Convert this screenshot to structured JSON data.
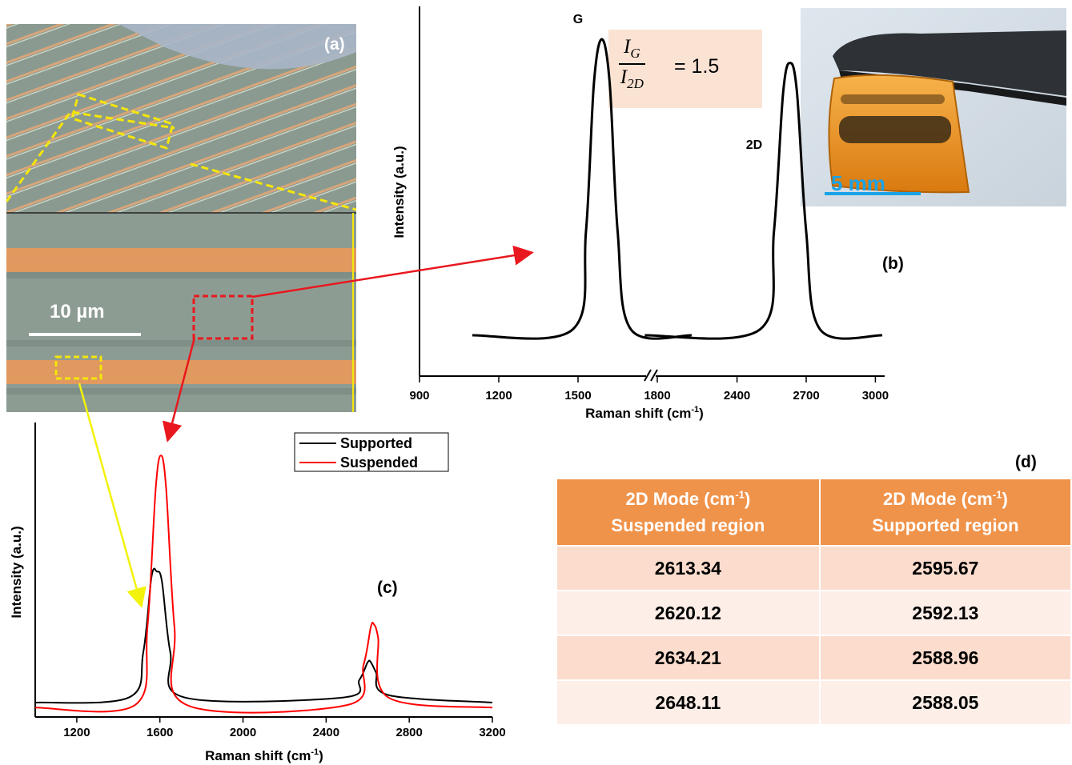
{
  "panel_labels": {
    "a": "(a)",
    "b": "(b)",
    "c": "(c)",
    "d": "(d)"
  },
  "micrograph": {
    "scale_bar": "10 µm"
  },
  "photo": {
    "scale_bar": "5 mm"
  },
  "ratio": {
    "numerator": "I",
    "numerator_sub": "G",
    "denominator": "I",
    "denominator_sub": "2D",
    "value": "= 1.5"
  },
  "colors": {
    "supported": "#000000",
    "suspended": "#ff0000",
    "table_header": "#f0934a",
    "scale_blue": "#1aa3e8",
    "yellow_box": "#f5e60a",
    "arrow_red": "#e8181e",
    "arrow_yellow": "#f2f20a"
  },
  "chart_data": [
    {
      "id": "b",
      "type": "line",
      "xlabel": "Raman shift (cm",
      "xlabel_sup": "-1",
      "xlabel_close": ")",
      "ylabel": "Intensity (a.u.)",
      "x_ticks": [
        "900",
        "1200",
        "1500",
        "1800",
        "2400",
        "2700",
        "3000"
      ],
      "axis_break": true,
      "peak_labels": [
        "G",
        "2D"
      ],
      "series": [
        {
          "segment": "G",
          "x": [
            1100,
            1480,
            1530,
            1560,
            1590,
            1620,
            1650,
            1700,
            1930
          ],
          "y": [
            0.0,
            0.02,
            0.35,
            0.85,
            1.0,
            0.85,
            0.35,
            0.02,
            0.0
          ]
        },
        {
          "segment": "2D",
          "x": [
            2000,
            2500,
            2560,
            2600,
            2630,
            2660,
            2700,
            2760,
            3030
          ],
          "y": [
            0.0,
            0.02,
            0.35,
            0.82,
            0.92,
            0.82,
            0.35,
            0.02,
            0.0
          ]
        }
      ]
    },
    {
      "id": "c",
      "type": "line",
      "xlabel": "Raman shift (cm",
      "xlabel_sup": "-1",
      "xlabel_close": ")",
      "ylabel": "Intensity (a.u.)",
      "xlim": [
        1000,
        3200
      ],
      "x_ticks": [
        "1200",
        "1600",
        "2000",
        "2400",
        "2800",
        "3200"
      ],
      "legend_position": "top-right",
      "series": [
        {
          "name": "Supported",
          "x": [
            1000,
            1450,
            1520,
            1560,
            1585,
            1610,
            1650,
            1720,
            2480,
            2560,
            2600,
            2615,
            2640,
            2700,
            3200
          ],
          "y": [
            0.0,
            0.02,
            0.2,
            0.5,
            0.52,
            0.48,
            0.2,
            0.02,
            0.02,
            0.09,
            0.16,
            0.16,
            0.12,
            0.03,
            0.0
          ]
        },
        {
          "name": "Suspended",
          "x": [
            1000,
            1480,
            1540,
            1580,
            1605,
            1630,
            1670,
            1730,
            2500,
            2580,
            2615,
            2630,
            2650,
            2700,
            3200
          ],
          "y": [
            -0.02,
            -0.01,
            0.3,
            0.85,
            0.98,
            0.85,
            0.3,
            -0.01,
            -0.01,
            0.15,
            0.3,
            0.31,
            0.26,
            0.02,
            -0.02
          ]
        }
      ]
    }
  ],
  "table": {
    "headers": [
      {
        "line1": "2D Mode (cm",
        "sup": "-1",
        "close": ")",
        "line2": "Suspended region"
      },
      {
        "line1": "2D Mode (cm",
        "sup": "-1",
        "close": ")",
        "line2": "Supported region"
      }
    ],
    "rows": [
      [
        "2613.34",
        "2595.67"
      ],
      [
        "2620.12",
        "2592.13"
      ],
      [
        "2634.21",
        "2588.96"
      ],
      [
        "2648.11",
        "2588.05"
      ]
    ]
  }
}
